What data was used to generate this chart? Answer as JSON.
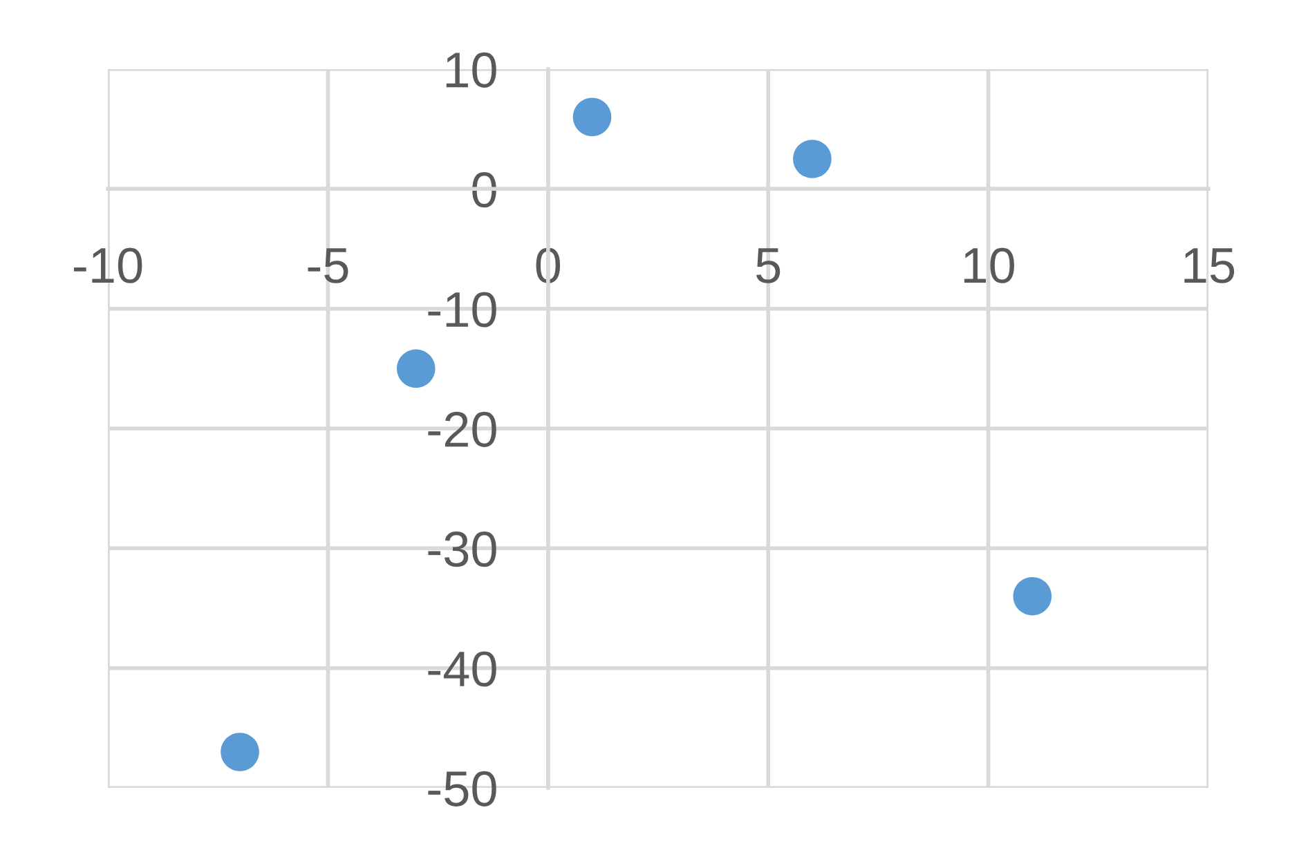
{
  "chart_data": {
    "type": "scatter",
    "x": [
      -7,
      -3,
      1,
      6,
      11
    ],
    "series": [
      {
        "color": "#5b9bd5",
        "values": [
          -47,
          -15,
          6,
          2.5,
          -34
        ]
      }
    ],
    "xlim": [
      -10,
      15
    ],
    "ylim": [
      -50,
      10
    ],
    "xticks": [
      -10,
      -5,
      0,
      5,
      10,
      15
    ],
    "yticks": [
      -50,
      -40,
      -30,
      -20,
      -10,
      0,
      10
    ],
    "grid": true,
    "marker": "circle"
  }
}
